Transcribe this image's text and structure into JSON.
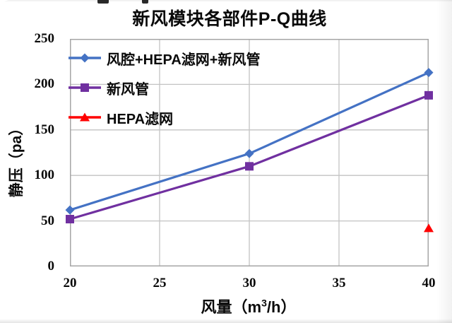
{
  "chart_data": {
    "type": "line",
    "title": "新风模块各部件P-Q曲线",
    "xlabel": {
      "prefix": "风量（m",
      "sup": "3",
      "suffix": "/h）"
    },
    "ylabel": "静压（pa）",
    "xlim": [
      20,
      40
    ],
    "ylim": [
      0,
      250
    ],
    "x_ticks": [
      20,
      25,
      30,
      35,
      40
    ],
    "y_ticks": [
      0,
      50,
      100,
      150,
      200,
      250
    ],
    "grid": true,
    "legend_position": "inside-top-left",
    "colors": {
      "grid": "#C3C3C3",
      "axis_border": "#A6A6A6",
      "text": "#0A0A0A"
    },
    "series": [
      {
        "name": "风腔+HEPA滤网+新风管",
        "color": "#4472C4",
        "marker": "diamond",
        "x": [
          20,
          30,
          40
        ],
        "y": [
          62,
          124,
          213
        ]
      },
      {
        "name": "新风管",
        "color": "#7030A0",
        "marker": "square",
        "x": [
          20,
          30,
          40
        ],
        "y": [
          52,
          110,
          188
        ]
      },
      {
        "name": "HEPA滤网",
        "color": "#FF0000",
        "marker": "triangle",
        "x": [
          40
        ],
        "y": [
          42
        ]
      }
    ]
  }
}
